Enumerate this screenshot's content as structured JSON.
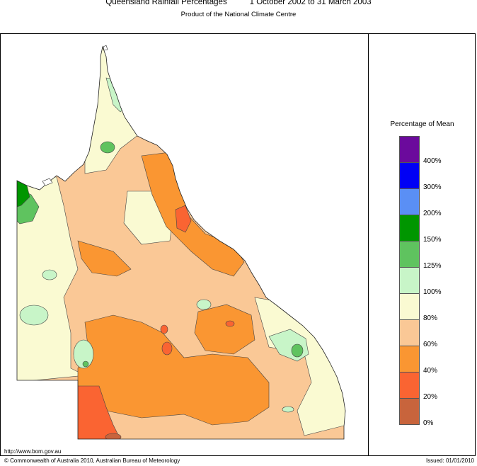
{
  "header": {
    "title": "Queensland Rainfall Percentages          1 October 2002 to 31 March 2003",
    "subtitle": "Product of the National Climate Centre"
  },
  "legend": {
    "title": "Percentage of Mean",
    "classes": [
      {
        "color": "#6b0a9c",
        "label": "400%"
      },
      {
        "color": "#0000f5",
        "label": "300%"
      },
      {
        "color": "#5a8ff5",
        "label": "200%"
      },
      {
        "color": "#009600",
        "label": "150%"
      },
      {
        "color": "#5fc35f",
        "label": "125%"
      },
      {
        "color": "#c8f5c8",
        "label": "100%"
      },
      {
        "color": "#fafad2",
        "label": "80%"
      },
      {
        "color": "#fac896",
        "label": "60%"
      },
      {
        "color": "#fa9632",
        "label": "40%"
      },
      {
        "color": "#fa6432",
        "label": "20%"
      },
      {
        "color": "#c8643c",
        "label": "0%"
      }
    ]
  },
  "footer": {
    "url": "http://www.bom.gov.au",
    "copyright": "© Commonwealth of Australia 2010, Australian Bureau of Meteorology",
    "issued": "Issued: 01/01/2010"
  }
}
